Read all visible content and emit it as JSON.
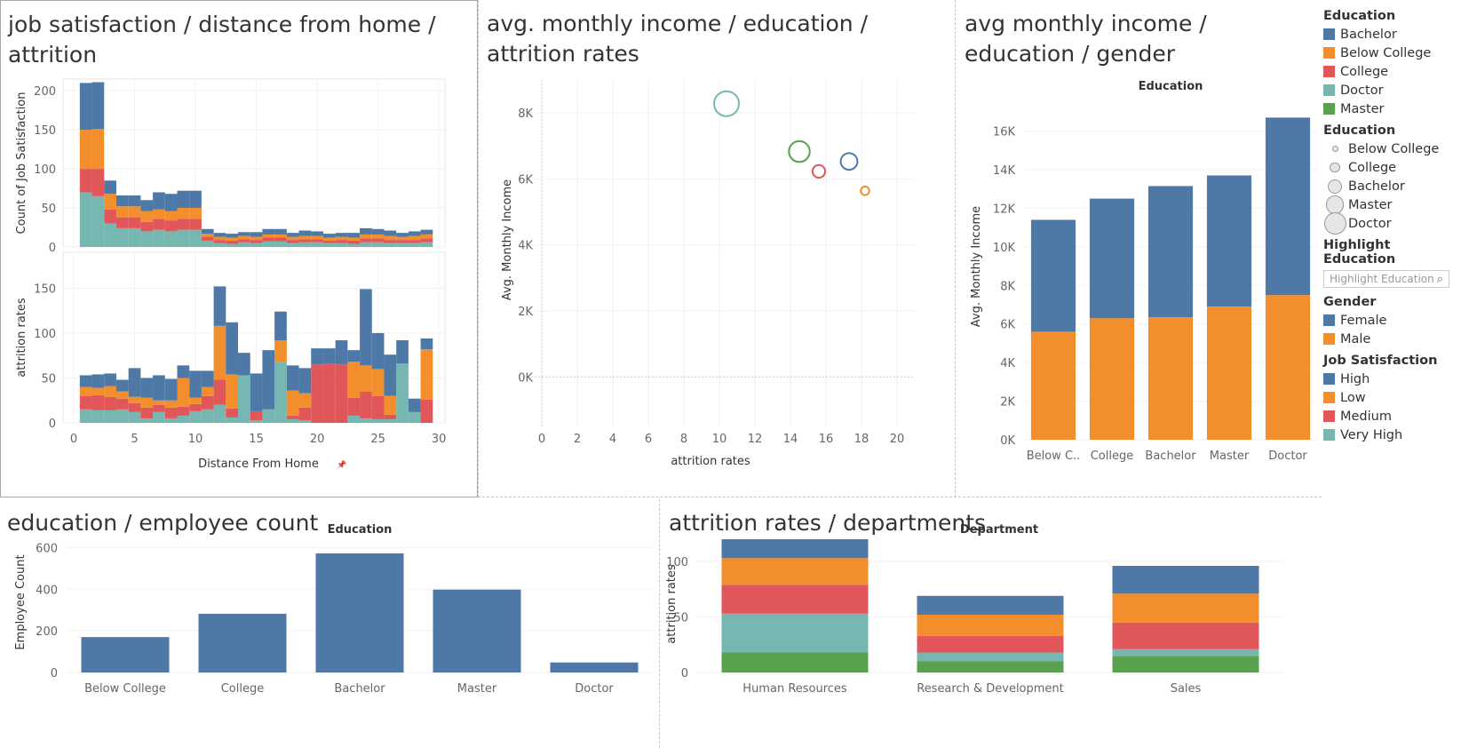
{
  "titles": {
    "p1": "job satisfaction / distance from home / attrition",
    "p2": "avg. monthly income / education / attrition rates",
    "p3": "avg monthly income / education / gender",
    "p4": "education / employee count",
    "p5": "attrition rates / departments"
  },
  "colors": {
    "blue": "#4e79a7",
    "orange": "#f28e2b",
    "red": "#e15759",
    "teal": "#76b7b2",
    "green": "#59a14f"
  },
  "legend": {
    "education_color_title": "Education",
    "education_color_items": [
      {
        "label": "Bachelor",
        "color": "#4e79a7"
      },
      {
        "label": "Below College",
        "color": "#f28e2b"
      },
      {
        "label": "College",
        "color": "#e15759"
      },
      {
        "label": "Doctor",
        "color": "#76b7b2"
      },
      {
        "label": "Master",
        "color": "#59a14f"
      }
    ],
    "education_size_title": "Education",
    "education_size_items": [
      "Below College",
      "College",
      "Bachelor",
      "Master",
      "Doctor"
    ],
    "highlight_title": "Highlight Education",
    "highlight_placeholder": "Highlight Education",
    "gender_title": "Gender",
    "gender_items": [
      {
        "label": "Female",
        "color": "#4e79a7"
      },
      {
        "label": "Male",
        "color": "#f28e2b"
      }
    ],
    "jobsat_title": "Job Satisfaction",
    "jobsat_items": [
      {
        "label": "High",
        "color": "#4e79a7"
      },
      {
        "label": "Low",
        "color": "#f28e2b"
      },
      {
        "label": "Medium",
        "color": "#e15759"
      },
      {
        "label": "Very High",
        "color": "#76b7b2"
      }
    ]
  },
  "chart_data": [
    {
      "id": "jobsat-distance",
      "type": "bar",
      "title": "job satisfaction / distance from home / attrition",
      "xlabel": "Distance From Home",
      "xticks": [
        0,
        5,
        10,
        15,
        20,
        25,
        30
      ],
      "x": [
        1,
        2,
        3,
        4,
        5,
        6,
        7,
        8,
        9,
        10,
        11,
        12,
        13,
        14,
        15,
        16,
        17,
        18,
        19,
        20,
        21,
        22,
        23,
        24,
        25,
        26,
        27,
        28,
        29
      ],
      "top": {
        "ylabel": "Count of Job Satisfaction",
        "ylim": [
          0,
          215
        ],
        "yticks": [
          0,
          50,
          100,
          150,
          200
        ],
        "series": [
          {
            "name": "Very High",
            "color": "#76b7b2",
            "values": [
              70,
              65,
              30,
              24,
              24,
              20,
              22,
              20,
              22,
              22,
              8,
              5,
              4,
              6,
              5,
              7,
              7,
              5,
              6,
              6,
              5,
              5,
              4,
              6,
              6,
              5,
              5,
              5,
              6
            ]
          },
          {
            "name": "Medium",
            "color": "#e15759",
            "values": [
              30,
              35,
              18,
              14,
              14,
              12,
              14,
              14,
              14,
              14,
              5,
              4,
              4,
              4,
              4,
              5,
              5,
              4,
              4,
              4,
              3,
              4,
              4,
              5,
              5,
              4,
              4,
              4,
              5
            ]
          },
          {
            "name": "Low",
            "color": "#f28e2b",
            "values": [
              50,
              51,
              20,
              14,
              14,
              14,
              12,
              12,
              14,
              14,
              4,
              4,
              4,
              4,
              4,
              4,
              4,
              4,
              4,
              4,
              4,
              4,
              4,
              5,
              5,
              5,
              4,
              5,
              5
            ]
          },
          {
            "name": "High",
            "color": "#4e79a7",
            "values": [
              60,
              60,
              17,
              14,
              14,
              14,
              22,
              22,
              22,
              22,
              6,
              5,
              5,
              5,
              6,
              7,
              7,
              5,
              7,
              6,
              5,
              5,
              6,
              8,
              7,
              7,
              5,
              6,
              6
            ]
          }
        ]
      },
      "bottom": {
        "ylabel": "attrition rates",
        "ylim": [
          0,
          190
        ],
        "yticks": [
          0,
          50,
          100,
          150
        ],
        "series": [
          {
            "name": "Very High",
            "color": "#76b7b2",
            "values": [
              15,
              14,
              14,
              15,
              12,
              5,
              12,
              5,
              8,
              13,
              15,
              20,
              6,
              53,
              3,
              15,
              68,
              4,
              3,
              0,
              0,
              0,
              8,
              5,
              4,
              4,
              66,
              12,
              0
            ]
          },
          {
            "name": "Medium",
            "color": "#e15759",
            "values": [
              15,
              17,
              15,
              12,
              10,
              12,
              8,
              12,
              10,
              8,
              15,
              28,
              10,
              0,
              10,
              0,
              0,
              4,
              14,
              65,
              66,
              65,
              20,
              30,
              26,
              5,
              0,
              0,
              26
            ]
          },
          {
            "name": "Low",
            "color": "#f28e2b",
            "values": [
              10,
              8,
              12,
              8,
              7,
              11,
              5,
              8,
              32,
              7,
              10,
              60,
              38,
              0,
              0,
              0,
              24,
              28,
              16,
              0,
              0,
              0,
              40,
              29,
              30,
              21,
              0,
              0,
              56
            ]
          },
          {
            "name": "High",
            "color": "#4e79a7",
            "values": [
              13,
              15,
              14,
              13,
              32,
              22,
              28,
              24,
              14,
              30,
              18,
              44,
              58,
              25,
              42,
              66,
              32,
              28,
              28,
              18,
              17,
              27,
              13,
              85,
              40,
              46,
              26,
              15,
              12
            ]
          }
        ]
      }
    },
    {
      "id": "income-education-attrition",
      "type": "scatter",
      "title": "avg. monthly income / education / attrition rates",
      "xlabel": "attrition rates",
      "ylabel": "Avg. Monthly Income",
      "xlim": [
        0,
        20
      ],
      "xticks": [
        0,
        2,
        4,
        6,
        8,
        10,
        12,
        14,
        16,
        18,
        20
      ],
      "ylim": [
        -1500,
        9000
      ],
      "yticks": [
        0,
        2000,
        4000,
        6000,
        8000
      ],
      "ytick_labels": [
        "0K",
        "2K",
        "4K",
        "6K",
        "8K"
      ],
      "points": [
        {
          "education": "Doctor",
          "x": 10.4,
          "y": 8280,
          "color": "#76b7b2",
          "size": 5
        },
        {
          "education": "Master",
          "x": 14.5,
          "y": 6830,
          "color": "#59a14f",
          "size": 4
        },
        {
          "education": "Bachelor",
          "x": 17.3,
          "y": 6530,
          "color": "#4e79a7",
          "size": 3
        },
        {
          "education": "College",
          "x": 15.6,
          "y": 6230,
          "color": "#e15759",
          "size": 2
        },
        {
          "education": "Below College",
          "x": 18.2,
          "y": 5640,
          "color": "#f28e2b",
          "size": 1
        }
      ]
    },
    {
      "id": "income-education-gender",
      "type": "bar",
      "title": "avg monthly income / education / gender",
      "header": "Education",
      "ylabel": "Avg. Monthly Income",
      "categories": [
        "Below C..",
        "College",
        "Bachelor",
        "Master",
        "Doctor"
      ],
      "ylim": [
        0,
        17500
      ],
      "yticks": [
        0,
        2000,
        4000,
        6000,
        8000,
        10000,
        12000,
        14000,
        16000
      ],
      "ytick_labels": [
        "0K",
        "2K",
        "4K",
        "6K",
        "8K",
        "10K",
        "12K",
        "14K",
        "16K"
      ],
      "series": [
        {
          "name": "Male",
          "color": "#f28e2b",
          "values": [
            5600,
            6300,
            6350,
            6900,
            7500
          ]
        },
        {
          "name": "Female",
          "color": "#4e79a7",
          "values": [
            5800,
            6200,
            6800,
            6800,
            9200
          ]
        }
      ]
    },
    {
      "id": "education-employee-count",
      "type": "bar",
      "title": "education / employee count",
      "header": "Education",
      "ylabel": "Employee Count",
      "categories": [
        "Below College",
        "College",
        "Bachelor",
        "Master",
        "Doctor"
      ],
      "values": [
        170,
        282,
        572,
        398,
        48
      ],
      "ylim": [
        0,
        640
      ],
      "yticks": [
        0,
        200,
        400,
        600
      ],
      "color": "#4e79a7"
    },
    {
      "id": "attrition-departments",
      "type": "bar",
      "title": "attrition rates / departments",
      "header": "Department",
      "ylabel": "attrition rates",
      "categories": [
        "Human Resources",
        "Research & Development",
        "Sales"
      ],
      "ylim": [
        0,
        120
      ],
      "yticks": [
        0,
        50,
        100
      ],
      "series": [
        {
          "name": "Master",
          "color": "#59a14f",
          "values": [
            18,
            10,
            15
          ]
        },
        {
          "name": "Doctor",
          "color": "#76b7b2",
          "values": [
            35,
            8,
            6
          ]
        },
        {
          "name": "College",
          "color": "#e15759",
          "values": [
            26,
            15,
            24
          ]
        },
        {
          "name": "Below College",
          "color": "#f28e2b",
          "values": [
            24,
            19,
            26
          ]
        },
        {
          "name": "Bachelor",
          "color": "#4e79a7",
          "values": [
            17,
            17,
            25
          ]
        }
      ]
    }
  ]
}
